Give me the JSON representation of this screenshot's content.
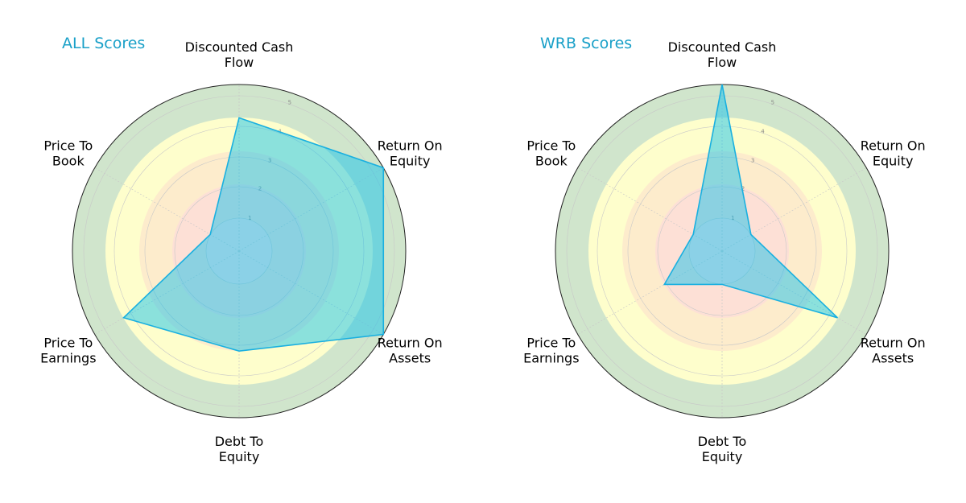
{
  "colors": {
    "title": "#1aa0c8",
    "series_fill": "#00bfef",
    "series_stroke": "#1ab0e0",
    "ring_5": "#d0e5cc",
    "ring_4": "#fefecc",
    "ring_3": "#fdeccc",
    "ring_2": "#fde0d6",
    "ring_1": "#fde0e0",
    "outline": "#222222",
    "grid": "#c8c8c8"
  },
  "chart_data": [
    {
      "type": "radar",
      "title": "ALL Scores",
      "axes": [
        "Discounted Cash Flow",
        "Return On Equity",
        "Return On Assets",
        "Debt To Equity",
        "Price To Earnings",
        "Price To Book"
      ],
      "axis_label_lines": [
        [
          "Discounted Cash",
          "Flow"
        ],
        [
          "Return On",
          "Equity"
        ],
        [
          "Return On",
          "Assets"
        ],
        [
          "Debt To",
          "Equity"
        ],
        [
          "Price To",
          "Earnings"
        ],
        [
          "Price To",
          "Book"
        ]
      ],
      "radial_ticks": [
        "1",
        "2",
        "3",
        "4",
        "5"
      ],
      "rlim": [
        0,
        5
      ],
      "series": [
        {
          "values": [
            4,
            5,
            5,
            3,
            4,
            1
          ]
        }
      ]
    },
    {
      "type": "radar",
      "title": "WRB Scores",
      "axes": [
        "Discounted Cash Flow",
        "Return On Equity",
        "Return On Assets",
        "Debt To Equity",
        "Price To Earnings",
        "Price To Book"
      ],
      "axis_label_lines": [
        [
          "Discounted Cash",
          "Flow"
        ],
        [
          "Return On",
          "Equity"
        ],
        [
          "Return On",
          "Assets"
        ],
        [
          "Debt To",
          "Equity"
        ],
        [
          "Price To",
          "Earnings"
        ],
        [
          "Price To",
          "Book"
        ]
      ],
      "radial_ticks": [
        "1",
        "2",
        "3",
        "4",
        "5"
      ],
      "rlim": [
        0,
        5
      ],
      "series": [
        {
          "values": [
            5,
            1,
            4,
            1,
            2,
            1
          ]
        }
      ]
    }
  ]
}
